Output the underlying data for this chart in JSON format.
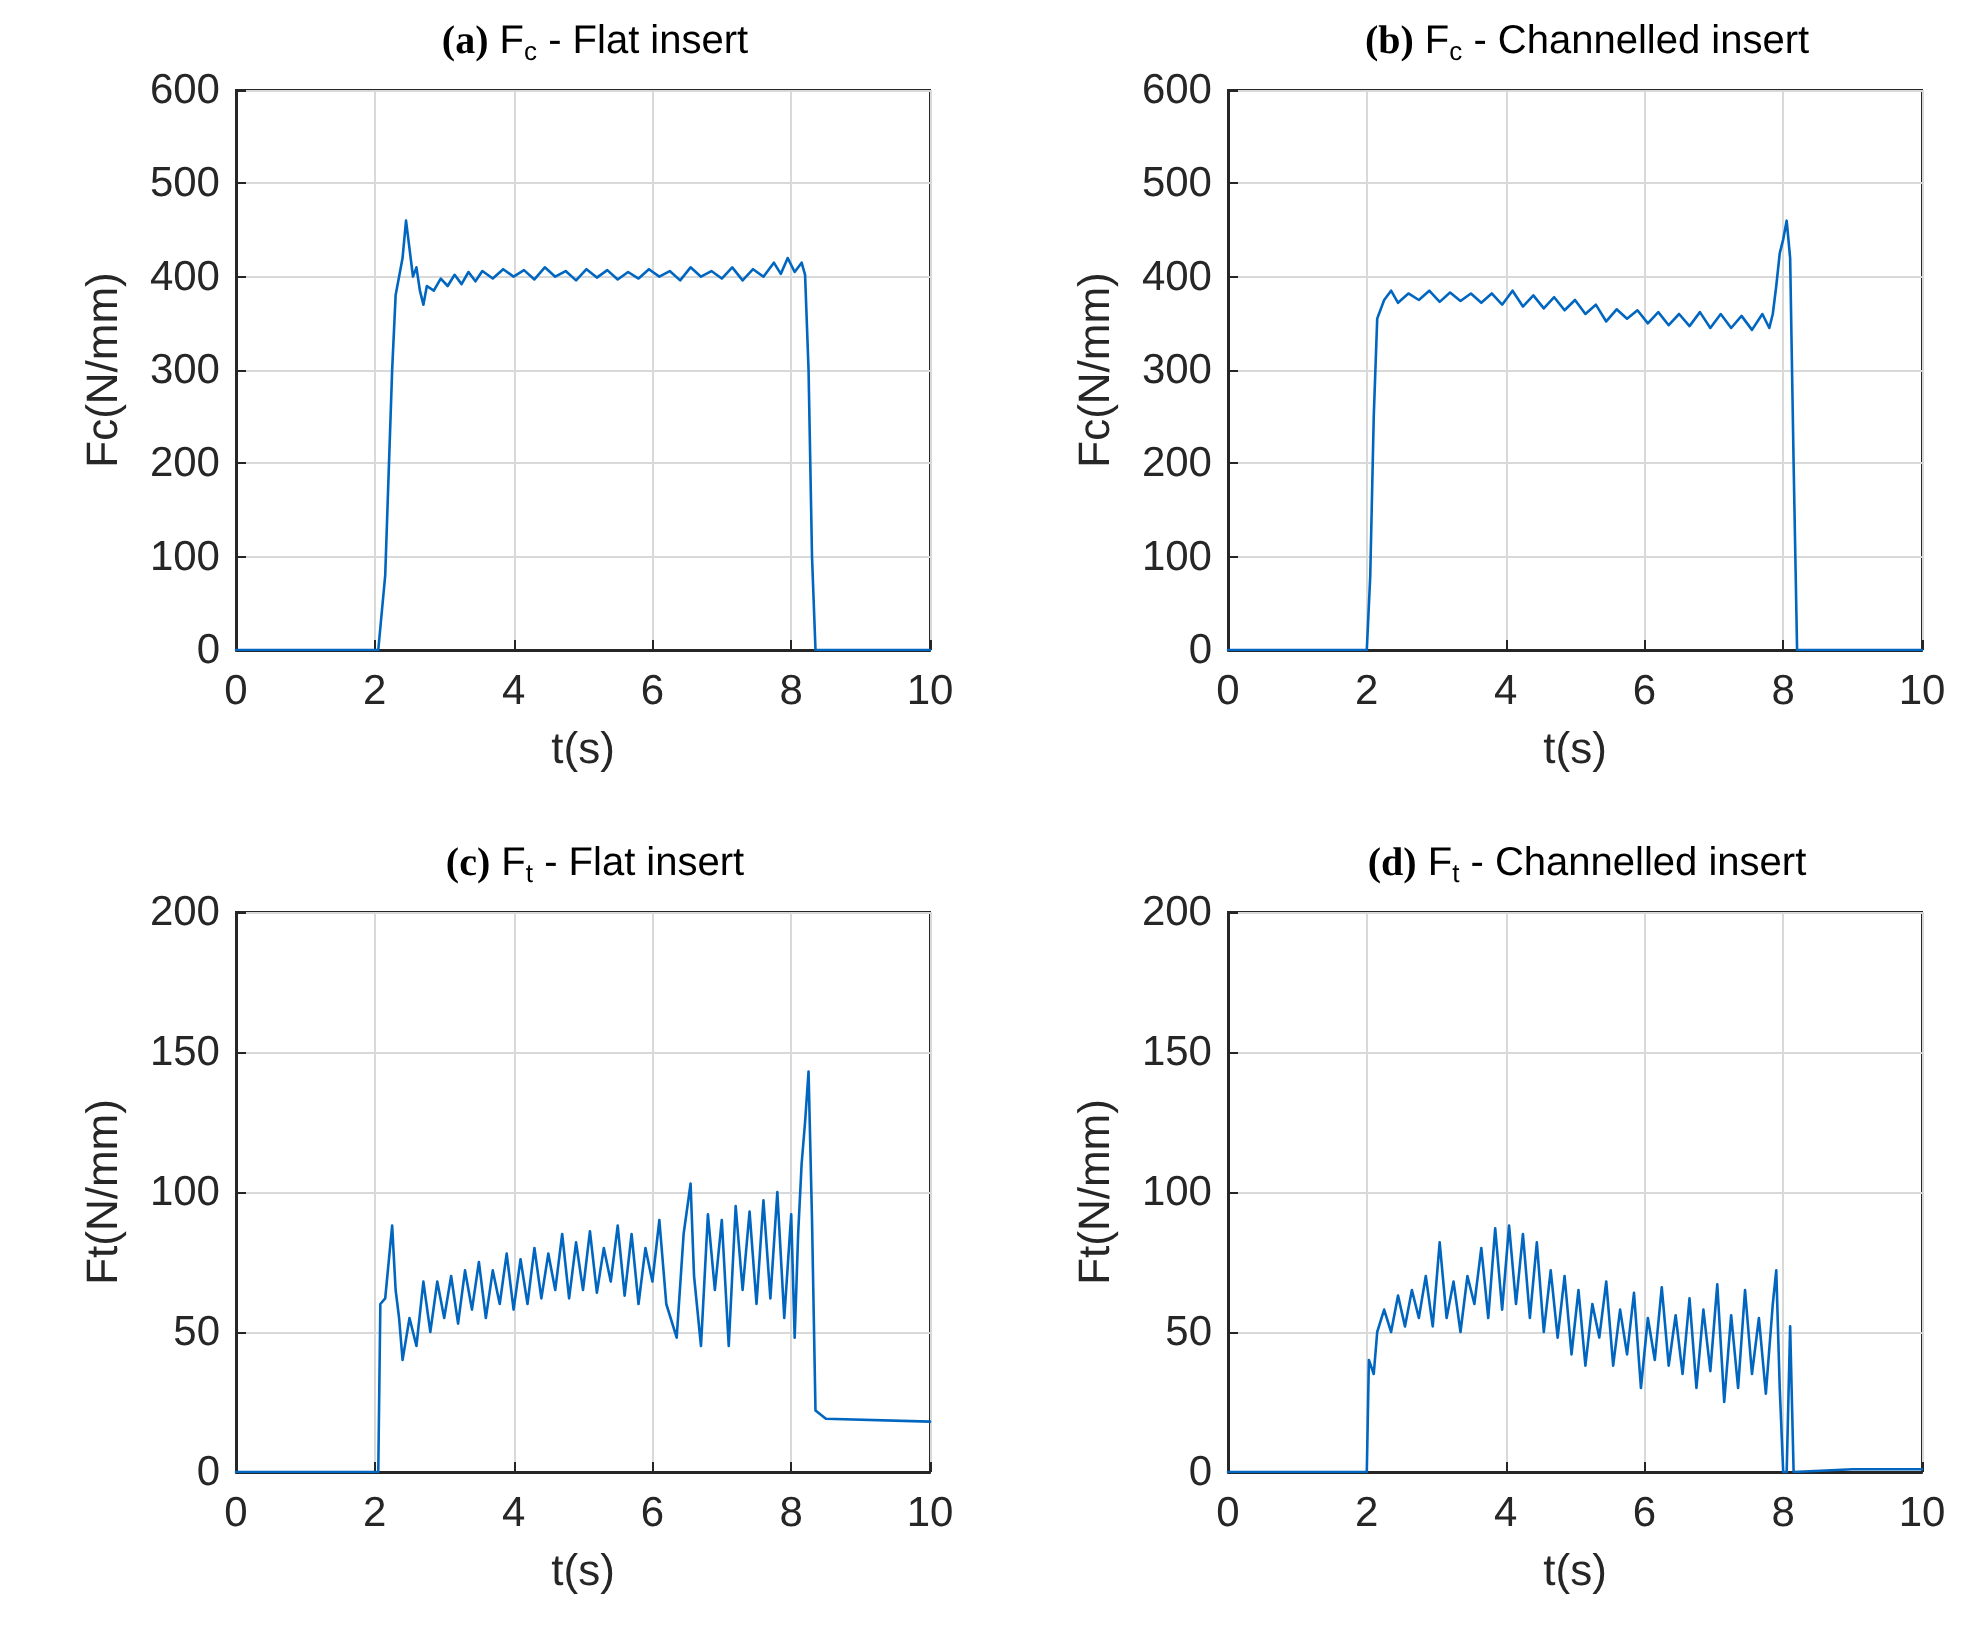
{
  "chart_data": [
    {
      "type": "line",
      "title": "(a) F$_{c}$ - Flat insert",
      "xlabel": "t(s)",
      "ylabel": "Fc(N/mm)",
      "xlim": [
        0,
        10
      ],
      "xticks": [
        0,
        2,
        4,
        6,
        8,
        10
      ],
      "ylim": [
        0,
        600
      ],
      "yticks": [
        0,
        100,
        200,
        300,
        400,
        500,
        600
      ],
      "grid": true,
      "marker": "none",
      "line_style": "solid",
      "series": [
        {
          "color": "#0066c0",
          "x": [
            0,
            2.0,
            2.05,
            2.15,
            2.25,
            2.3,
            2.4,
            2.45,
            2.5,
            2.55,
            2.6,
            2.65,
            2.7,
            2.75,
            2.85,
            2.95,
            3.05,
            3.15,
            3.25,
            3.35,
            3.45,
            3.55,
            3.7,
            3.85,
            4.0,
            4.15,
            4.3,
            4.45,
            4.6,
            4.75,
            4.9,
            5.05,
            5.2,
            5.35,
            5.5,
            5.65,
            5.8,
            5.95,
            6.1,
            6.25,
            6.4,
            6.55,
            6.7,
            6.85,
            7.0,
            7.15,
            7.3,
            7.45,
            7.6,
            7.75,
            7.85,
            7.95,
            8.05,
            8.15,
            8.2,
            8.25,
            8.3,
            8.35,
            10
          ],
          "values": [
            0,
            0,
            0,
            80,
            300,
            380,
            420,
            460,
            430,
            400,
            410,
            385,
            370,
            390,
            385,
            398,
            390,
            402,
            392,
            405,
            395,
            406,
            398,
            408,
            400,
            407,
            397,
            410,
            400,
            406,
            396,
            408,
            399,
            407,
            397,
            405,
            398,
            408,
            400,
            406,
            396,
            410,
            400,
            406,
            398,
            410,
            396,
            408,
            400,
            415,
            403,
            420,
            405,
            415,
            402,
            300,
            100,
            0,
            0
          ]
        }
      ]
    },
    {
      "type": "line",
      "title": "(b) F$_{c}$ - Channelled insert",
      "xlabel": "t(s)",
      "ylabel": "Fc(N/mm)",
      "xlim": [
        0,
        10
      ],
      "xticks": [
        0,
        2,
        4,
        6,
        8,
        10
      ],
      "ylim": [
        0,
        600
      ],
      "yticks": [
        0,
        100,
        200,
        300,
        400,
        500,
        600
      ],
      "grid": true,
      "marker": "none",
      "line_style": "solid",
      "series": [
        {
          "color": "#0066c0",
          "x": [
            0,
            1.95,
            2.0,
            2.05,
            2.1,
            2.15,
            2.25,
            2.35,
            2.45,
            2.6,
            2.75,
            2.9,
            3.05,
            3.2,
            3.35,
            3.5,
            3.65,
            3.8,
            3.95,
            4.1,
            4.25,
            4.4,
            4.55,
            4.7,
            4.85,
            5.0,
            5.15,
            5.3,
            5.45,
            5.6,
            5.75,
            5.9,
            6.05,
            6.2,
            6.35,
            6.5,
            6.65,
            6.8,
            6.95,
            7.1,
            7.25,
            7.4,
            7.55,
            7.7,
            7.8,
            7.85,
            7.9,
            7.95,
            8.0,
            8.05,
            8.1,
            8.15,
            8.2,
            10
          ],
          "values": [
            0,
            0,
            0,
            80,
            250,
            355,
            375,
            385,
            372,
            382,
            375,
            385,
            373,
            383,
            374,
            382,
            372,
            382,
            370,
            385,
            368,
            380,
            366,
            378,
            364,
            375,
            360,
            370,
            352,
            365,
            355,
            364,
            350,
            362,
            348,
            360,
            347,
            362,
            345,
            360,
            345,
            358,
            343,
            360,
            345,
            360,
            390,
            425,
            440,
            460,
            420,
            200,
            0,
            0
          ]
        }
      ]
    },
    {
      "type": "line",
      "title": "(c) F$_{t}$ - Flat insert",
      "xlabel": "t(s)",
      "ylabel": "Ft(N/mm)",
      "xlim": [
        0,
        10
      ],
      "xticks": [
        0,
        2,
        4,
        6,
        8,
        10
      ],
      "ylim": [
        0,
        200
      ],
      "yticks": [
        0,
        50,
        100,
        150,
        200
      ],
      "grid": true,
      "marker": "none",
      "line_style": "solid",
      "series": [
        {
          "color": "#0066c0",
          "x": [
            0,
            2.0,
            2.05,
            2.08,
            2.15,
            2.2,
            2.25,
            2.3,
            2.35,
            2.4,
            2.5,
            2.6,
            2.7,
            2.8,
            2.9,
            3.0,
            3.1,
            3.2,
            3.3,
            3.4,
            3.5,
            3.6,
            3.7,
            3.8,
            3.9,
            4.0,
            4.1,
            4.2,
            4.3,
            4.4,
            4.5,
            4.6,
            4.7,
            4.8,
            4.9,
            5.0,
            5.1,
            5.2,
            5.3,
            5.4,
            5.5,
            5.6,
            5.7,
            5.8,
            5.9,
            6.0,
            6.1,
            6.2,
            6.35,
            6.45,
            6.55,
            6.6,
            6.7,
            6.8,
            6.9,
            7.0,
            7.1,
            7.2,
            7.3,
            7.4,
            7.5,
            7.6,
            7.7,
            7.8,
            7.9,
            8.0,
            8.05,
            8.1,
            8.15,
            8.2,
            8.25,
            8.3,
            8.35,
            8.5,
            10
          ],
          "values": [
            0,
            0,
            0,
            60,
            62,
            75,
            88,
            65,
            55,
            40,
            55,
            45,
            68,
            50,
            68,
            55,
            70,
            53,
            72,
            58,
            75,
            55,
            72,
            60,
            78,
            58,
            76,
            60,
            80,
            62,
            78,
            65,
            85,
            62,
            82,
            65,
            86,
            64,
            80,
            68,
            88,
            63,
            85,
            60,
            80,
            68,
            90,
            60,
            48,
            85,
            103,
            70,
            45,
            92,
            65,
            90,
            45,
            95,
            65,
            93,
            60,
            97,
            62,
            100,
            55,
            92,
            48,
            85,
            110,
            125,
            143,
            90,
            22,
            19,
            18
          ]
        }
      ]
    },
    {
      "type": "line",
      "title": "(d) F$_{t}$ - Channelled insert",
      "xlabel": "t(s)",
      "ylabel": "Ft(N/mm)",
      "xlim": [
        0,
        10
      ],
      "xticks": [
        0,
        2,
        4,
        6,
        8,
        10
      ],
      "ylim": [
        0,
        200
      ],
      "yticks": [
        0,
        50,
        100,
        150,
        200
      ],
      "grid": true,
      "marker": "none",
      "line_style": "solid",
      "series": [
        {
          "color": "#0066c0",
          "x": [
            0,
            1.95,
            2.0,
            2.03,
            2.1,
            2.15,
            2.25,
            2.35,
            2.45,
            2.55,
            2.65,
            2.75,
            2.85,
            2.95,
            3.05,
            3.15,
            3.25,
            3.35,
            3.45,
            3.55,
            3.65,
            3.75,
            3.85,
            3.95,
            4.05,
            4.15,
            4.25,
            4.35,
            4.45,
            4.55,
            4.65,
            4.75,
            4.85,
            4.95,
            5.05,
            5.15,
            5.25,
            5.35,
            5.45,
            5.55,
            5.65,
            5.75,
            5.85,
            5.95,
            6.05,
            6.15,
            6.25,
            6.35,
            6.45,
            6.55,
            6.65,
            6.75,
            6.85,
            6.95,
            7.05,
            7.15,
            7.25,
            7.35,
            7.45,
            7.55,
            7.65,
            7.75,
            7.85,
            7.9,
            7.95,
            8.0,
            8.05,
            8.1,
            8.15,
            9.0,
            10
          ],
          "values": [
            0,
            0,
            0,
            40,
            35,
            50,
            58,
            50,
            63,
            52,
            65,
            55,
            70,
            52,
            82,
            55,
            68,
            50,
            70,
            60,
            80,
            55,
            87,
            58,
            88,
            60,
            85,
            55,
            82,
            50,
            72,
            48,
            70,
            42,
            65,
            38,
            60,
            48,
            68,
            38,
            58,
            42,
            64,
            30,
            55,
            40,
            66,
            38,
            56,
            35,
            62,
            30,
            58,
            36,
            67,
            25,
            56,
            30,
            65,
            35,
            55,
            28,
            60,
            72,
            30,
            0,
            0,
            52,
            0,
            1,
            1
          ]
        }
      ]
    }
  ]
}
